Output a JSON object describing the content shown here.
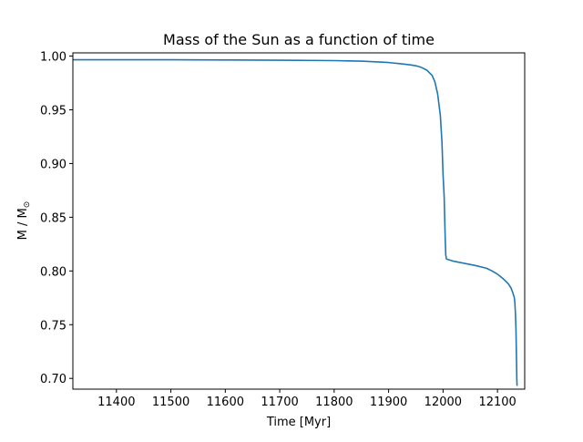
{
  "chart_data": {
    "type": "line",
    "title": "Mass of the Sun as a function of time",
    "xlabel": "Time [Myr]",
    "ylabel": "M / M",
    "ylabel_sub": "⊙",
    "xlim": [
      11320,
      12150
    ],
    "ylim": [
      0.69,
      1.003
    ],
    "xticks": [
      11400,
      11500,
      11600,
      11700,
      11800,
      11900,
      12000,
      12100
    ],
    "xtick_labels": [
      "11400",
      "11500",
      "11600",
      "11700",
      "11800",
      "11900",
      "12000",
      "12100"
    ],
    "yticks": [
      0.7,
      0.75,
      0.8,
      0.85,
      0.9,
      0.95,
      1.0
    ],
    "ytick_labels": [
      "0.70",
      "0.75",
      "0.80",
      "0.85",
      "0.90",
      "0.95",
      "1.00"
    ],
    "grid": false,
    "series": [
      {
        "color": "#1f77b4",
        "x": [
          11320,
          11400,
          11500,
          11600,
          11700,
          11800,
          11850,
          11900,
          11920,
          11940,
          11950,
          11960,
          11970,
          11980,
          11985,
          11990,
          11995,
          11998,
          12000,
          12002,
          12003,
          12004,
          12005,
          12006,
          12007,
          12020,
          12040,
          12060,
          12080,
          12090,
          12100,
          12110,
          12120,
          12125,
          12128,
          12131,
          12132,
          12133,
          12134,
          12134.5,
          12135,
          12135.5,
          12136
        ],
        "y": [
          0.9966,
          0.9966,
          0.9966,
          0.9964,
          0.9962,
          0.9958,
          0.9953,
          0.994,
          0.993,
          0.9918,
          0.991,
          0.9895,
          0.987,
          0.982,
          0.976,
          0.965,
          0.945,
          0.92,
          0.89,
          0.87,
          0.85,
          0.83,
          0.815,
          0.8115,
          0.811,
          0.809,
          0.807,
          0.805,
          0.8025,
          0.8,
          0.797,
          0.793,
          0.788,
          0.784,
          0.78,
          0.775,
          0.77,
          0.76,
          0.745,
          0.73,
          0.715,
          0.7,
          0.693
        ]
      }
    ]
  }
}
